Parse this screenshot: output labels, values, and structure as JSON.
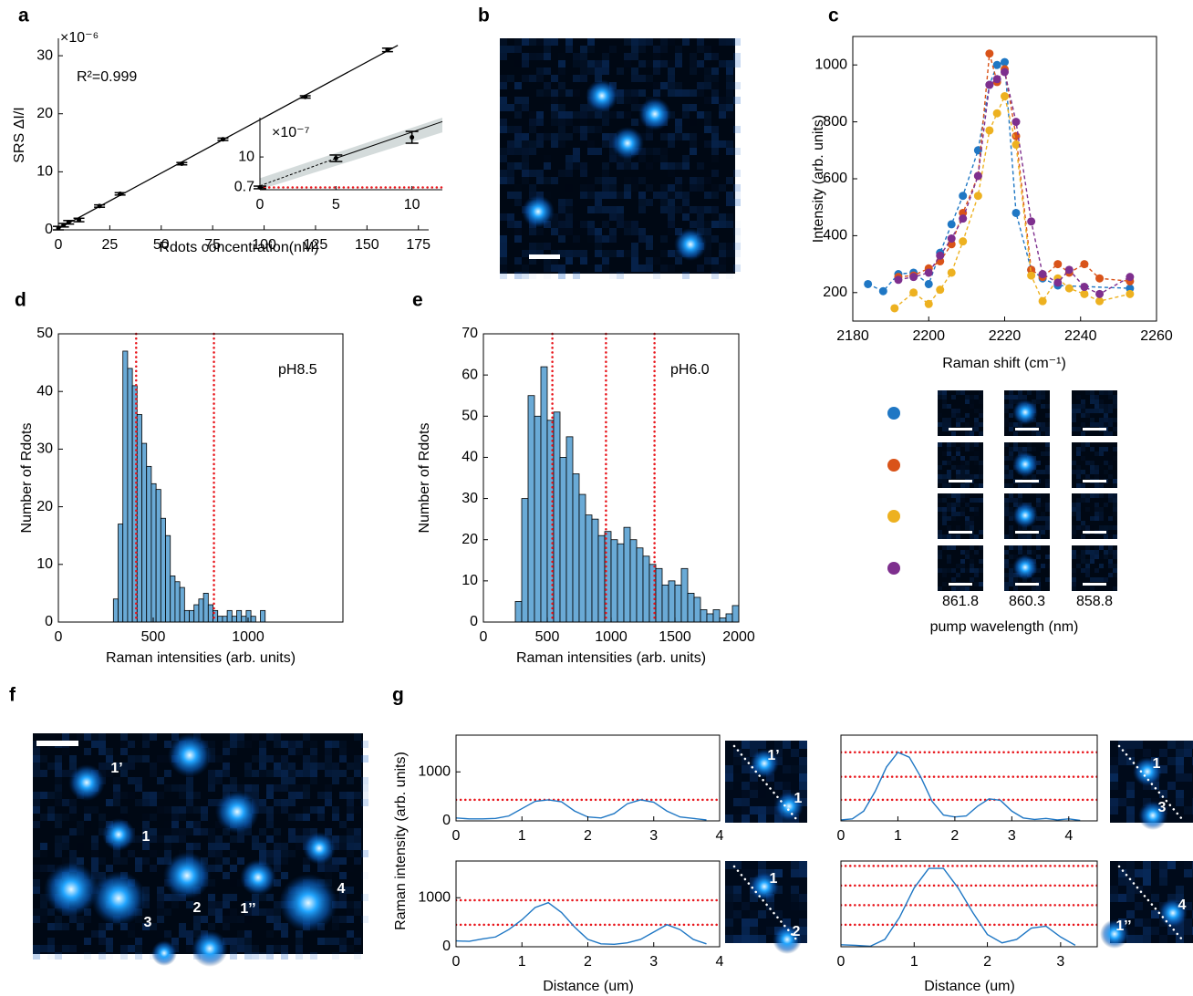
{
  "chart_data": [
    {
      "type": "scatter",
      "panel": "a",
      "xlabel": "Rdots concentration(nM)",
      "ylabel": "SRS ΔI/I",
      "exponent": "×10⁻⁶",
      "annotation": "R²=0.999",
      "x": [
        0,
        2.5,
        5,
        10,
        20,
        30,
        60,
        80,
        120,
        160
      ],
      "values": [
        0.3,
        0.8,
        1.3,
        1.7,
        4.1,
        6.2,
        11.4,
        15.6,
        22.9,
        31.0
      ],
      "errors": [
        0.3,
        0.3,
        0.3,
        0.3,
        0.2,
        0.2,
        0.2,
        0.2,
        0.2,
        0.3
      ],
      "color": "#000000",
      "fit": {
        "x": [
          0,
          165
        ],
        "values": [
          0.2,
          31.8
        ]
      },
      "xlim": [
        0,
        180
      ],
      "ylim": [
        0,
        33
      ],
      "xticks": [
        0,
        25,
        50,
        75,
        100,
        125,
        150,
        175
      ],
      "yticks": [
        0,
        10,
        20,
        30
      ],
      "inset": {
        "exponent": "×10⁻⁷",
        "x": [
          0,
          5,
          10
        ],
        "values": [
          0.7,
          9.6,
          16.0
        ],
        "errors": [
          0.4,
          1.0,
          1.8
        ],
        "fit": {
          "x": [
            0,
            5,
            12
          ],
          "values": [
            1.2,
            9.6,
            20.8
          ]
        },
        "band": {
          "x": [
            0,
            12
          ],
          "lower": [
            0,
            17.5
          ],
          "upper": [
            3.5,
            22
          ]
        },
        "hlines": [
          0.7
        ],
        "xlim": [
          0,
          12
        ],
        "ylim": [
          0,
          22
        ],
        "xticks": [
          0,
          5,
          10
        ],
        "yticks": [
          0.7,
          10
        ]
      }
    },
    {
      "type": "image",
      "panel": "b"
    },
    {
      "type": "line",
      "panel": "c",
      "xlabel": "Raman shift (cm⁻¹)",
      "ylabel": "Intensity (arb. units)",
      "markers": true,
      "line_style": "dashed",
      "xlim": [
        2180,
        2260
      ],
      "ylim": [
        100,
        1100
      ],
      "xticks": [
        2180,
        2200,
        2220,
        2240,
        2260
      ],
      "yticks": [
        200,
        400,
        600,
        800,
        1000
      ],
      "series": [
        {
          "color": "#1f77c4",
          "x": [
            2184,
            2188,
            2192,
            2196,
            2200,
            2203,
            2206,
            2209,
            2213,
            2216,
            2218,
            2220,
            2223,
            2227,
            2230,
            2234,
            2253
          ],
          "values": [
            230,
            205,
            265,
            270,
            230,
            340,
            440,
            540,
            700,
            930,
            1000,
            1010,
            480,
            280,
            250,
            225,
            215
          ]
        },
        {
          "color": "#d95319",
          "x": [
            2192,
            2196,
            2200,
            2203,
            2206,
            2209,
            2213,
            2216,
            2218,
            2220,
            2223,
            2227,
            2230,
            2234,
            2237,
            2241,
            2245,
            2253
          ],
          "values": [
            255,
            260,
            285,
            310,
            370,
            480,
            610,
            1040,
            940,
            985,
            750,
            280,
            255,
            300,
            270,
            300,
            250,
            240
          ]
        },
        {
          "color": "#edb120",
          "x": [
            2191,
            2196,
            2200,
            2203,
            2206,
            2209,
            2213,
            2216,
            2218,
            2220,
            2223,
            2227,
            2230,
            2234,
            2237,
            2241,
            2245,
            2253
          ],
          "values": [
            145,
            200,
            160,
            210,
            270,
            380,
            540,
            770,
            830,
            890,
            720,
            260,
            170,
            250,
            215,
            195,
            170,
            195
          ]
        },
        {
          "color": "#7e2f8e",
          "x": [
            2192,
            2196,
            2200,
            2203,
            2206,
            2209,
            2213,
            2216,
            2218,
            2220,
            2223,
            2227,
            2230,
            2234,
            2237,
            2241,
            2245,
            2253
          ],
          "values": [
            245,
            255,
            270,
            330,
            390,
            460,
            610,
            930,
            950,
            975,
            800,
            450,
            265,
            235,
            280,
            220,
            195,
            255
          ]
        }
      ],
      "pump_wavelengths": [
        "861.8",
        "860.3",
        "858.8"
      ],
      "pump_label": "pump wavelength (nm)"
    },
    {
      "type": "histogram",
      "panel": "d",
      "xlabel": "Raman intensities (arb. units)",
      "ylabel": "Number of Rdots",
      "annotation": "pH8.5",
      "color": "#6aaad6",
      "bins": [
        290,
        315,
        340,
        365,
        390,
        415,
        440,
        465,
        490,
        515,
        540,
        565,
        590,
        615,
        640,
        665,
        690,
        715,
        740,
        765,
        790,
        815,
        840,
        865,
        890,
        915,
        940,
        965,
        990,
        1015,
        1040,
        1065,
        1090
      ],
      "counts": [
        4,
        17,
        47,
        44,
        41,
        36,
        31,
        27,
        24,
        23,
        18,
        15,
        8,
        7,
        6,
        2,
        2,
        3,
        4,
        5,
        3,
        2,
        1,
        1,
        2,
        1,
        2,
        1,
        2,
        1,
        0,
        2
      ],
      "vlines": [
        410,
        820
      ],
      "xlim": [
        0,
        1500
      ],
      "ylim": [
        0,
        50
      ],
      "xticks": [
        0,
        500,
        1000
      ],
      "yticks": [
        0,
        10,
        20,
        30,
        40,
        50
      ]
    },
    {
      "type": "histogram",
      "panel": "e",
      "xlabel": "Raman intensities (arb. units)",
      "ylabel": "Number of Rdots",
      "annotation": "pH6.0",
      "color": "#6aaad6",
      "bins": [
        250,
        300,
        350,
        400,
        450,
        500,
        550,
        600,
        650,
        700,
        750,
        800,
        850,
        900,
        950,
        1000,
        1050,
        1100,
        1150,
        1200,
        1250,
        1300,
        1350,
        1400,
        1450,
        1500,
        1550,
        1600,
        1650,
        1700,
        1750,
        1800,
        1850,
        1900,
        1950,
        2000
      ],
      "counts": [
        5,
        30,
        55,
        50,
        62,
        49,
        51,
        40,
        45,
        36,
        31,
        26,
        25,
        21,
        22,
        20,
        19,
        23,
        20,
        18,
        16,
        14,
        13,
        9,
        10,
        9,
        13,
        7,
        6,
        3,
        2,
        3,
        1,
        2,
        4
      ],
      "vlines": [
        540,
        960,
        1340
      ],
      "xlim": [
        0,
        2000
      ],
      "ylim": [
        0,
        70
      ],
      "xticks": [
        0,
        500,
        1000,
        1500,
        2000
      ],
      "yticks": [
        0,
        10,
        20,
        30,
        40,
        50,
        60,
        70
      ]
    },
    {
      "type": "image",
      "panel": "f",
      "labels": [
        "1’",
        "1",
        "3",
        "2",
        "1’’",
        "4"
      ]
    },
    {
      "type": "line",
      "panel": "g",
      "ylabel": "Raman intensity (arb. units)",
      "thumb_labels": [
        "1’",
        "1"
      ],
      "series": [
        {
          "color": "#1f77c4",
          "x": [
            0,
            0.2,
            0.4,
            0.6,
            0.8,
            1,
            1.2,
            1.4,
            1.6,
            1.8,
            2,
            2.2,
            2.4,
            2.6,
            2.8,
            3,
            3.2,
            3.4,
            3.6,
            3.8
          ],
          "values": [
            60,
            40,
            40,
            50,
            100,
            250,
            400,
            430,
            390,
            200,
            80,
            60,
            150,
            350,
            430,
            380,
            200,
            80,
            50,
            20
          ]
        }
      ],
      "hlines": [
        430
      ],
      "xlim": [
        0,
        4
      ],
      "ylim": [
        0,
        1750
      ],
      "xticks": [
        0,
        1,
        2,
        3,
        4
      ],
      "yticks": [
        0,
        1000
      ]
    },
    {
      "type": "line",
      "xlabel": "Distance (um)",
      "thumb_labels": [
        "1",
        "2"
      ],
      "series": [
        {
          "color": "#1f77c4",
          "x": [
            0,
            0.2,
            0.4,
            0.6,
            0.8,
            1,
            1.2,
            1.4,
            1.6,
            1.8,
            2,
            2.2,
            2.4,
            2.6,
            2.8,
            3,
            3.2,
            3.4,
            3.6,
            3.8
          ],
          "values": [
            120,
            110,
            160,
            200,
            350,
            550,
            800,
            900,
            700,
            400,
            150,
            60,
            50,
            80,
            150,
            300,
            450,
            350,
            150,
            60
          ]
        }
      ],
      "hlines": [
        450,
        950
      ],
      "xlim": [
        0,
        4
      ],
      "ylim": [
        0,
        1750
      ],
      "xticks": [
        0,
        1,
        2,
        3,
        4
      ],
      "yticks": [
        0,
        1000
      ]
    },
    {
      "type": "line",
      "thumb_labels": [
        "1",
        "3"
      ],
      "series": [
        {
          "color": "#1f77c4",
          "x": [
            0,
            0.2,
            0.4,
            0.6,
            0.8,
            1,
            1.2,
            1.4,
            1.6,
            1.8,
            2,
            2.2,
            2.4,
            2.6,
            2.8,
            3,
            3.2,
            3.4,
            3.6,
            3.8,
            4,
            4.2
          ],
          "values": [
            20,
            40,
            200,
            600,
            1100,
            1400,
            1300,
            900,
            400,
            120,
            80,
            100,
            300,
            450,
            420,
            200,
            60,
            30,
            50,
            20,
            40,
            10
          ]
        }
      ],
      "hlines": [
        430,
        900,
        1400
      ],
      "xlim": [
        0,
        4.5
      ],
      "ylim": [
        0,
        1750
      ],
      "xticks": [
        0,
        1,
        2,
        3,
        4
      ]
    },
    {
      "type": "line",
      "xlabel": "Distance (um)",
      "thumb_labels": [
        "1’’",
        "4"
      ],
      "series": [
        {
          "color": "#1f77c4",
          "x": [
            0,
            0.2,
            0.4,
            0.6,
            0.8,
            1,
            1.2,
            1.4,
            1.6,
            1.8,
            2,
            2.2,
            2.4,
            2.6,
            2.8,
            3,
            3.2
          ],
          "values": [
            40,
            30,
            10,
            150,
            600,
            1200,
            1600,
            1600,
            1200,
            700,
            250,
            80,
            150,
            380,
            420,
            200,
            30
          ]
        }
      ],
      "hlines": [
        450,
        850,
        1250,
        1650
      ],
      "xlim": [
        0,
        3.5
      ],
      "ylim": [
        0,
        1750
      ],
      "xticks": [
        0,
        1,
        2,
        3
      ]
    }
  ]
}
